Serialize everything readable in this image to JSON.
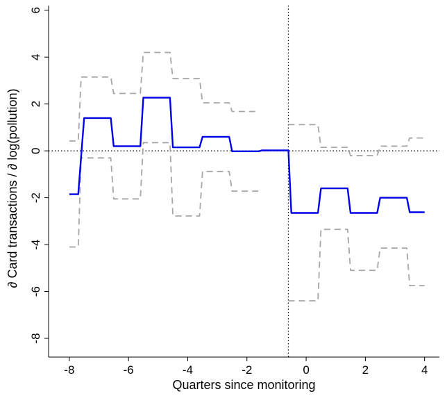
{
  "chart_data": {
    "type": "line",
    "xlabel": "Quarters since monitoring",
    "ylabel": "∂ Card transactions / ∂ log(pollution)",
    "xlim": [
      -8.7,
      4.5
    ],
    "ylim": [
      -8.8,
      6.2
    ],
    "xticks": [
      -8,
      -6,
      -4,
      -2,
      0,
      2,
      4
    ],
    "xtick_labels": [
      "-8",
      "-6",
      "-4",
      "-2",
      "0",
      "2",
      "4"
    ],
    "yticks": [
      -8,
      -6,
      -4,
      -2,
      0,
      2,
      4,
      6
    ],
    "ytick_labels": [
      "-8",
      "-6",
      "-4",
      "-2",
      "0",
      "2",
      "4",
      "6"
    ],
    "grid": false,
    "reference_lines": {
      "vertical_x": -0.6,
      "horizontal_y": 0
    },
    "series": [
      {
        "style": "solid",
        "color": "#0000e6",
        "x": [
          -8.0,
          -7.7,
          -7.5,
          -6.6,
          -6.5,
          -5.6,
          -5.5,
          -4.6,
          -4.5,
          -3.6,
          -3.5,
          -2.6,
          -2.5,
          -1.6,
          -1.5,
          -0.6,
          -0.5,
          0.4,
          0.5,
          1.4,
          1.5,
          2.4,
          2.5,
          3.4,
          3.5,
          4.0
        ],
        "y": [
          -1.85,
          -1.85,
          1.4,
          1.4,
          0.2,
          0.2,
          2.27,
          2.27,
          0.15,
          0.15,
          0.6,
          0.6,
          -0.02,
          -0.02,
          0.02,
          0.02,
          -2.65,
          -2.65,
          -1.6,
          -1.6,
          -2.65,
          -2.65,
          -2.0,
          -2.0,
          -2.62,
          -2.62
        ]
      },
      {
        "style": "dashed",
        "color": "#a6a6a6",
        "x": [
          -8.0,
          -7.7,
          -7.6,
          -6.6,
          -6.5,
          -5.6,
          -5.5,
          -4.6,
          -4.5,
          -3.6,
          -3.5,
          -2.6,
          -2.5,
          -1.6
        ],
        "y": [
          0.42,
          0.42,
          3.15,
          3.15,
          2.45,
          2.45,
          4.2,
          4.2,
          3.08,
          3.08,
          2.05,
          2.05,
          1.68,
          1.68
        ]
      },
      {
        "style": "dashed",
        "color": "#a6a6a6",
        "x": [
          -8.0,
          -7.7,
          -7.6,
          -6.6,
          -6.5,
          -5.6,
          -5.5,
          -4.6,
          -4.5,
          -3.6,
          -3.5,
          -2.6,
          -2.5,
          -1.6
        ],
        "y": [
          -4.1,
          -4.1,
          -0.3,
          -0.3,
          -2.05,
          -2.05,
          0.35,
          0.35,
          -2.78,
          -2.78,
          -0.88,
          -0.88,
          -1.72,
          -1.72
        ]
      },
      {
        "style": "dashed",
        "color": "#a6a6a6",
        "x": [
          -0.6,
          0.4,
          0.5,
          1.4,
          1.5,
          2.4,
          2.5,
          3.4,
          3.5,
          4.0
        ],
        "y": [
          1.12,
          1.12,
          0.15,
          0.15,
          -0.2,
          -0.2,
          0.2,
          0.2,
          0.55,
          0.55
        ]
      },
      {
        "style": "dashed",
        "color": "#a6a6a6",
        "x": [
          -0.6,
          0.4,
          0.5,
          1.4,
          1.5,
          2.4,
          2.5,
          3.4,
          3.5,
          4.0
        ],
        "y": [
          -6.4,
          -6.4,
          -3.35,
          -3.35,
          -5.1,
          -5.1,
          -4.15,
          -4.15,
          -5.75,
          -5.75
        ]
      }
    ]
  }
}
